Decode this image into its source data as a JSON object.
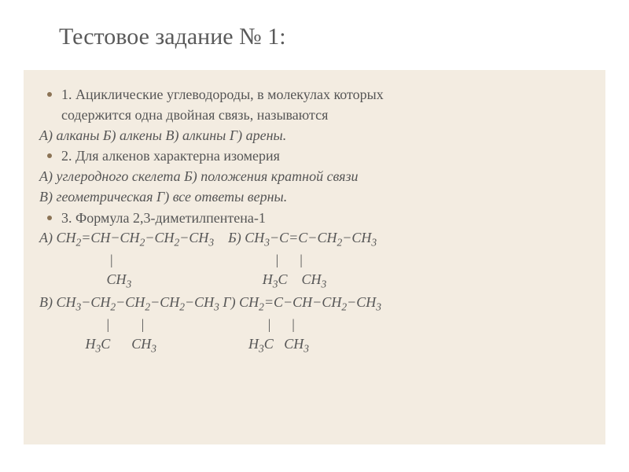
{
  "title": "Тестовое задание № 1:",
  "q1": {
    "bullet_text": "1. Ациклические углеводороды, в молекулах которых",
    "cont": "содержится одна двойная связь, называются",
    "options": "А) алканы     Б) алкены    В) алкины    Г) арены."
  },
  "q2": {
    "bullet_text": "2. Для алкенов характерна изомерия",
    "row1": "А) углеродного скелета     Б) положения кратной связи",
    "row2": "В) геометрическая             Г) все ответы верны."
  },
  "q3": {
    "bullet_text": "3. Формула 2,3-диметилпентена-1"
  },
  "colors": {
    "background": "#ffffff",
    "content_bg": "#f3ece1",
    "text": "#555555",
    "title": "#5a5a5a",
    "bullet": "#8b7355"
  }
}
